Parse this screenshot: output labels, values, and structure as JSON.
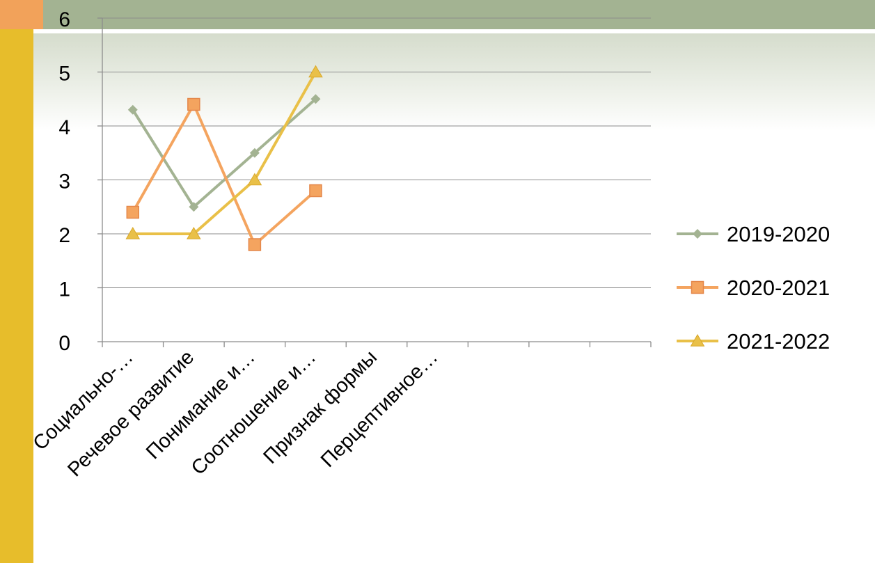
{
  "chart_data": {
    "type": "line",
    "categories": [
      "Социально-…",
      "Речевое развитие",
      "Понимание и…",
      "Соотношение и…",
      "Признак формы",
      "Перцептивное…",
      "",
      "",
      ""
    ],
    "series": [
      {
        "name": "2019-2020",
        "marker": "diamond",
        "color": "#a3b392",
        "values": [
          4.3,
          2.5,
          3.5,
          4.5,
          null,
          null,
          null,
          null,
          null
        ]
      },
      {
        "name": "2020-2021",
        "marker": "square",
        "color": "#f4a45f",
        "values": [
          2.4,
          4.4,
          1.8,
          2.8,
          null,
          null,
          null,
          null,
          null
        ]
      },
      {
        "name": "2021-2022",
        "marker": "triangle",
        "color": "#e9c048",
        "values": [
          2.0,
          2.0,
          3.0,
          5.0,
          null,
          null,
          null,
          null,
          null
        ]
      }
    ],
    "y_ticks": [
      "0",
      "1",
      "2",
      "3",
      "4",
      "5",
      "6"
    ],
    "ylim": [
      0,
      6
    ],
    "grid": "horizontal",
    "legend": "right"
  }
}
